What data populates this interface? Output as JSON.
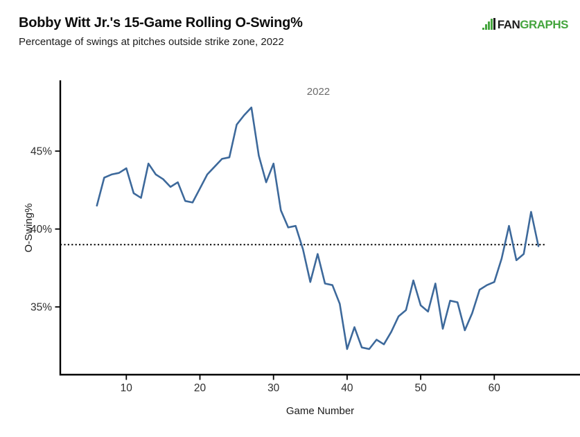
{
  "header": {
    "title": "Bobby Witt Jr.'s 15-Game Rolling O-Swing%",
    "subtitle": "Percentage of swings at pitches outside strike zone, 2022"
  },
  "logo": {
    "fan": "FAN",
    "graphs": "GRAPHS",
    "green": "#45A53E",
    "dark": "#1d1d1d"
  },
  "chart_data": {
    "type": "line",
    "title": "Bobby Witt Jr.'s 15-Game Rolling O-Swing%",
    "subtitle": "Percentage of swings at pitches outside strike zone, 2022",
    "xlabel": "Game Number",
    "ylabel": "O-Swing%",
    "x_ticks": [
      10,
      20,
      30,
      40,
      50,
      60
    ],
    "y_ticks": [
      35,
      40,
      45
    ],
    "y_tick_suffix": "%",
    "xlim": [
      1,
      71
    ],
    "ylim": [
      30.6,
      49.5
    ],
    "grid": false,
    "legend_position": "none",
    "line_color": "#3D699B",
    "axis_color": "#000000",
    "tick_label_color": "#2e2e2e",
    "reference_line": {
      "value": 39.0,
      "style": "dotted",
      "color": "#000000"
    },
    "annotations": [
      {
        "text": "2022",
        "x": 36.1,
        "y": 48.6,
        "color": "#6b6b6b"
      }
    ],
    "series": [
      {
        "name": "2022",
        "x": [
          6,
          7,
          8,
          9,
          10,
          11,
          12,
          13,
          14,
          15,
          16,
          17,
          18,
          19,
          20,
          21,
          22,
          23,
          24,
          25,
          26,
          27,
          28,
          29,
          30,
          31,
          32,
          33,
          34,
          35,
          36,
          37,
          38,
          39,
          40,
          41,
          42,
          43,
          44,
          45,
          46,
          47,
          48,
          49,
          50,
          51,
          52,
          53,
          54,
          55,
          56,
          57,
          58,
          59,
          60,
          61,
          62,
          63,
          64,
          65,
          66
        ],
        "values": [
          41.5,
          43.3,
          43.5,
          43.6,
          43.9,
          42.3,
          42.0,
          44.2,
          43.5,
          43.2,
          42.7,
          43.0,
          41.8,
          41.7,
          42.6,
          43.5,
          44.0,
          44.5,
          44.6,
          46.7,
          47.3,
          47.8,
          44.7,
          43.0,
          44.2,
          41.2,
          40.1,
          40.2,
          38.7,
          36.6,
          38.4,
          36.5,
          36.4,
          35.2,
          32.3,
          33.7,
          32.4,
          32.3,
          32.9,
          32.6,
          33.4,
          34.4,
          34.8,
          36.7,
          35.1,
          34.7,
          36.5,
          33.6,
          35.4,
          35.3,
          33.5,
          34.6,
          36.1,
          36.4,
          36.6,
          38.1,
          40.2,
          38.0,
          38.4,
          41.1,
          38.9
        ]
      }
    ]
  }
}
